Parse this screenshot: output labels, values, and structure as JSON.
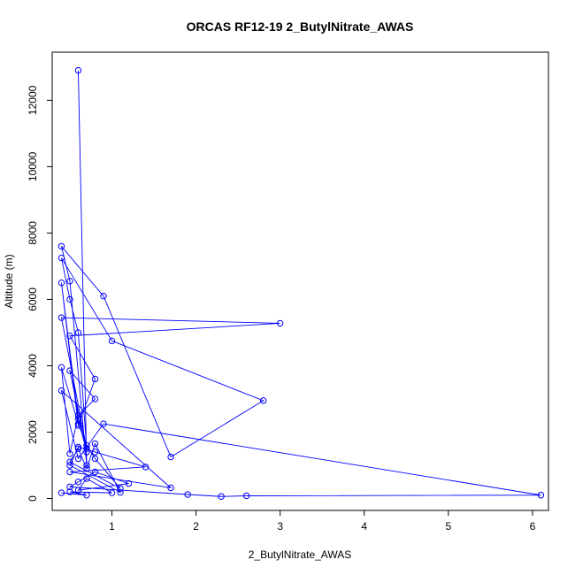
{
  "chart_data": {
    "type": "line",
    "title": "ORCAS RF12-19 2_ButylNitrate_AWAS",
    "xlabel": "2_ButylNitrate_AWAS",
    "ylabel": "Altitude (m)",
    "xlim": [
      0.29,
      6.19
    ],
    "ylim": [
      -360,
      13450
    ],
    "x_ticks": [
      1,
      2,
      3,
      4,
      5,
      6
    ],
    "y_ticks": [
      0,
      2000,
      4000,
      6000,
      8000,
      10000,
      12000
    ],
    "grid": false,
    "series_color": "#0000ff",
    "markers": "open-circle",
    "series": [
      {
        "x": [
          0.6,
          0.7,
          0.5,
          0.4,
          0.9,
          1.7,
          2.8,
          1.0,
          0.4,
          0.5,
          0.6,
          0.7,
          0.4,
          3.0,
          0.5,
          0.8,
          0.6,
          0.4,
          0.6,
          0.7,
          0.5,
          0.8,
          0.6,
          0.5,
          0.4,
          0.6,
          0.7,
          0.8,
          1.1,
          0.5,
          0.6,
          0.7,
          0.8,
          1.1,
          0.5,
          0.6,
          0.8,
          1.4,
          0.5,
          1.7,
          0.4,
          0.6,
          0.9,
          6.1,
          2.6,
          2.3,
          1.9,
          0.5,
          0.6,
          0.8,
          1.2,
          0.6,
          0.7,
          1.0,
          0.5,
          0.7,
          0.4
        ],
        "y": [
          12900,
          1000,
          6550,
          7600,
          6100,
          1250,
          2950,
          4750,
          7250,
          6000,
          5000,
          1500,
          5450,
          5280,
          4900,
          3600,
          2200,
          6500,
          2400,
          1400,
          3850,
          3000,
          2500,
          1350,
          3950,
          2250,
          1600,
          1200,
          300,
          1100,
          1500,
          900,
          1650,
          180,
          1000,
          1550,
          1400,
          950,
          800,
          320,
          3250,
          1200,
          2250,
          100,
          80,
          60,
          120,
          350,
          500,
          800,
          450,
          250,
          600,
          170,
          200,
          100,
          170
        ]
      }
    ]
  }
}
